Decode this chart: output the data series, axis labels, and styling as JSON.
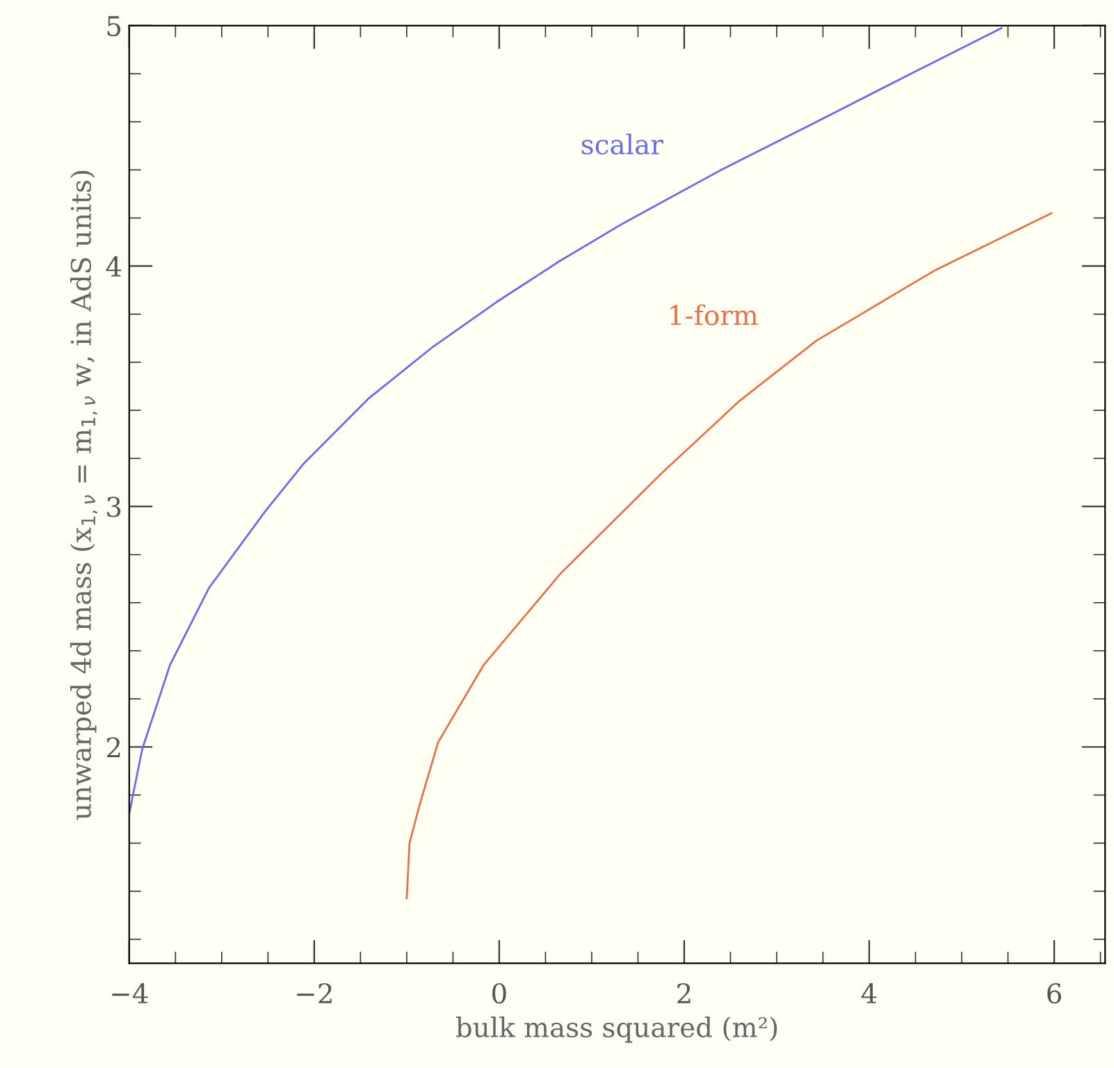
{
  "chart_data": {
    "type": "line",
    "xlabel": "bulk mass squared (m²)",
    "ylabel": "unwarped 4d mass (x$_{1,ν}$ = m$_{1,ν}$ w, in AdS units)",
    "series": [
      {
        "name": "scalar",
        "color": "#6b6be6",
        "x": [
          -4,
          -3.97,
          -3.86,
          -3.56,
          -3.14,
          -2.53,
          -2.11,
          -1.41,
          -0.73,
          -0.03,
          0.65,
          1.35,
          2.4,
          3.43,
          4.4,
          5.43
        ],
        "values": [
          1.72,
          1.78,
          1.99,
          2.34,
          2.66,
          2.98,
          3.18,
          3.45,
          3.66,
          3.85,
          4.02,
          4.18,
          4.4,
          4.6,
          4.79,
          4.99
        ]
      },
      {
        "name": "1-form",
        "color": "#e8704a",
        "x": [
          -1,
          -0.97,
          -0.86,
          -0.66,
          -0.17,
          0.66,
          1.76,
          2.6,
          3.43,
          4.7,
          5.97
        ],
        "values": [
          1.37,
          1.6,
          1.76,
          2.02,
          2.34,
          2.72,
          3.14,
          3.44,
          3.69,
          3.98,
          4.22
        ]
      }
    ],
    "xlim": [
      -4,
      6.55
    ],
    "ylim": [
      1.1,
      5
    ],
    "xticks": [
      {
        "value": -4,
        "label": "−4"
      },
      {
        "value": -2,
        "label": "−2"
      },
      0,
      2,
      4,
      6
    ],
    "yticks": [
      2,
      3,
      4,
      5
    ],
    "grid": false,
    "legend": false,
    "line_style": "solid",
    "marker": "none"
  }
}
